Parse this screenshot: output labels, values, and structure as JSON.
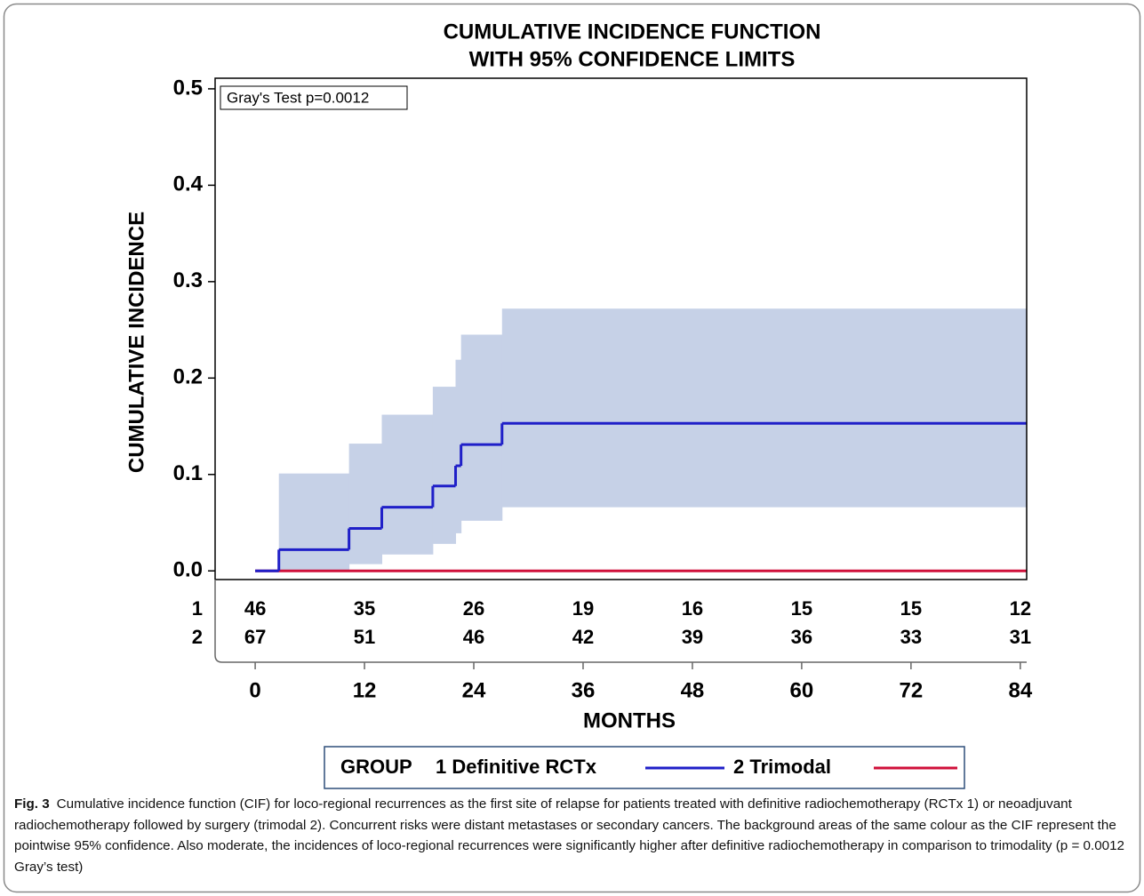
{
  "chart_data": {
    "type": "step",
    "title": [
      "CUMULATIVE INCIDENCE FUNCTION",
      "WITH 95% CONFIDENCE LIMITS"
    ],
    "y_label": "CUMULATIVE  INCIDENCE",
    "x_label": "MONTHS",
    "annotation": "Gray's Test p=0.0012",
    "legend_title": "GROUP",
    "xlim": [
      -4.4,
      84.7
    ],
    "ylim": [
      -0.009,
      0.511
    ],
    "xticks": [
      0,
      12,
      24,
      36,
      48,
      60,
      72,
      84
    ],
    "yticks": [
      {
        "value": 0,
        "label": "0.0"
      },
      0.1,
      0.2,
      0.3,
      0.4,
      0.5
    ],
    "band_color": "#c6d1e7",
    "series": [
      {
        "name": "1 Definitive RCTx",
        "color": "#1f1fc8",
        "x": [
          0,
          2.6,
          10.3,
          13.9,
          19.5,
          22.0,
          22.6,
          27.1
        ],
        "values": [
          0,
          0.022,
          0.044,
          0.066,
          0.088,
          0.109,
          0.131,
          0.153
        ],
        "ci_lower": [
          0,
          0.001,
          0.007,
          0.017,
          0.028,
          0.039,
          0.052,
          0.066
        ],
        "ci_upper": [
          0,
          0.101,
          0.132,
          0.162,
          0.191,
          0.219,
          0.245,
          0.272
        ]
      },
      {
        "name": "2 Trimodal",
        "color": "#d0103a",
        "x": [
          0
        ],
        "values": [
          0
        ]
      }
    ],
    "risk_table": {
      "rows": [
        {
          "label": "1",
          "values": [
            46,
            35,
            26,
            19,
            16,
            15,
            15,
            12
          ]
        },
        {
          "label": "2",
          "values": [
            67,
            51,
            46,
            42,
            39,
            36,
            33,
            31
          ]
        }
      ]
    }
  },
  "caption": {
    "label": "Fig. 3",
    "text": "Cumulative incidence function (CIF) for loco-regional recurrences as the first site of relapse for patients treated with definitive radiochemotherapy (RCTx 1) or neoadjuvant radiochemotherapy followed by surgery (trimodal 2). Concurrent risks were distant metastases or secondary cancers. The background areas of the same colour as the CIF represent the pointwise 95% confidence. Also moderate, the incidences of loco-regional recurrences were significantly higher after definitive radiochemotherapy in comparison to trimodality (p = 0.0012 Gray’s test)"
  }
}
